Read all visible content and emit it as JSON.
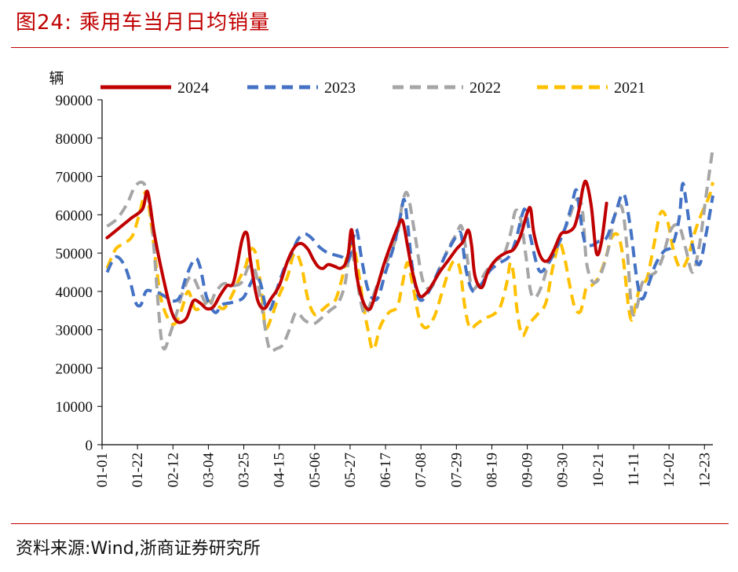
{
  "header": {
    "title": "图24:   乘用车当月日均销量"
  },
  "footer": {
    "source": "资料来源:Wind,浙商证券研究所"
  },
  "chart_data": {
    "type": "line",
    "ylabel": "辆",
    "ylim": [
      0,
      90000
    ],
    "yticks": [
      0,
      10000,
      20000,
      30000,
      40000,
      50000,
      60000,
      70000,
      80000,
      90000
    ],
    "xticks": [
      "01-01",
      "01-22",
      "02-12",
      "03-04",
      "03-25",
      "04-15",
      "05-06",
      "05-27",
      "06-17",
      "07-08",
      "07-29",
      "08-19",
      "09-09",
      "09-30",
      "10-21",
      "11-11",
      "12-02",
      "12-23"
    ],
    "xrange_days": [
      0,
      362
    ],
    "grid": false,
    "legend": "top",
    "series": [
      {
        "name": "2024",
        "color": "#c00000",
        "dash": "solid",
        "x": [
          3,
          10,
          17,
          24,
          27,
          31,
          36,
          41,
          45,
          50,
          54,
          58,
          62,
          66,
          70,
          74,
          78,
          83,
          86,
          88,
          92,
          96,
          100,
          105,
          110,
          114,
          118,
          122,
          125,
          128,
          131,
          134,
          138,
          141,
          144,
          146,
          148,
          151,
          155,
          159,
          163,
          167,
          171,
          175,
          178,
          181,
          184,
          188,
          192,
          196,
          200,
          205,
          210,
          214,
          217,
          219,
          221,
          225,
          229,
          234,
          239,
          244,
          248,
          252,
          254,
          256,
          260,
          264,
          268,
          272,
          276,
          280,
          283,
          285,
          287,
          290,
          293,
          296,
          299
        ],
        "y": [
          54000,
          56500,
          59000,
          61500,
          66000,
          55000,
          44000,
          35000,
          32000,
          33000,
          37500,
          37000,
          35500,
          36000,
          39000,
          41500,
          42500,
          53500,
          55000,
          48000,
          38000,
          35500,
          38000,
          41500,
          48000,
          51500,
          52500,
          51000,
          48500,
          46500,
          46000,
          47000,
          46500,
          46000,
          47000,
          50000,
          56000,
          44000,
          37000,
          35500,
          41000,
          47000,
          52000,
          56500,
          58500,
          52000,
          45000,
          39000,
          39500,
          42000,
          45000,
          48000,
          51000,
          53000,
          56000,
          52000,
          44000,
          41000,
          45500,
          48500,
          50000,
          51000,
          54500,
          60500,
          61500,
          55000,
          49000,
          48000,
          51000,
          55000,
          55500,
          57000,
          62000,
          67000,
          68500,
          62000,
          50000,
          53000,
          63000
        ]
      },
      {
        "name": "2023",
        "color": "#4472c4",
        "dash": "dashed",
        "x": [
          3,
          8,
          13,
          17,
          20,
          23,
          26,
          30,
          34,
          38,
          42,
          46,
          50,
          55,
          58,
          62,
          67,
          71,
          76,
          80,
          84,
          88,
          91,
          94,
          97,
          100,
          104,
          108,
          112,
          116,
          120,
          124,
          129,
          134,
          138,
          142,
          146,
          149,
          151,
          154,
          158,
          163,
          168,
          173,
          177,
          179,
          181,
          184,
          188,
          193,
          198,
          203,
          208,
          211,
          213,
          216,
          220,
          225,
          230,
          236,
          241,
          245,
          249,
          251,
          254,
          259,
          264,
          269,
          274,
          278,
          281,
          283,
          286,
          290,
          294,
          299,
          304,
          309,
          313,
          317,
          320,
          324,
          328,
          333,
          338,
          342,
          344,
          346,
          350,
          354,
          358,
          362
        ],
        "y": [
          45000,
          49000,
          47000,
          42000,
          37000,
          36500,
          40000,
          40000,
          39500,
          38500,
          37500,
          38500,
          44000,
          48500,
          46500,
          38500,
          34500,
          36500,
          37000,
          37500,
          38500,
          42000,
          44000,
          42000,
          36000,
          35500,
          41000,
          46000,
          49500,
          53500,
          55000,
          54000,
          51500,
          50000,
          49500,
          49000,
          48000,
          54000,
          56000,
          48000,
          40000,
          38000,
          45000,
          52000,
          60000,
          64000,
          58000,
          46000,
          38000,
          39500,
          44000,
          49000,
          53000,
          55000,
          54500,
          45000,
          40000,
          42000,
          45500,
          47500,
          49000,
          53000,
          60000,
          61000,
          54000,
          45500,
          47000,
          51000,
          56000,
          62000,
          66500,
          61000,
          53000,
          52000,
          53000,
          54000,
          60000,
          65500,
          57000,
          43000,
          38000,
          42000,
          47000,
          50500,
          52000,
          59000,
          68000,
          64000,
          52000,
          47000,
          55000,
          65000
        ]
      },
      {
        "name": "2022",
        "color": "#a6a6a6",
        "dash": "dashed",
        "x": [
          3,
          9,
          15,
          19,
          23,
          26,
          29,
          31,
          33,
          35,
          37,
          40,
          44,
          48,
          53,
          58,
          63,
          67,
          72,
          78,
          83,
          87,
          91,
          95,
          98,
          100,
          103,
          107,
          111,
          115,
          120,
          125,
          130,
          135,
          140,
          144,
          147,
          150,
          153,
          156,
          160,
          165,
          170,
          175,
          178,
          181,
          185,
          190,
          195,
          200,
          205,
          210,
          213,
          216,
          219,
          223,
          228,
          233,
          238,
          242,
          245,
          248,
          251,
          254,
          257,
          261,
          265,
          270,
          275,
          280,
          283,
          285,
          287,
          290,
          293,
          296,
          300,
          304,
          308,
          311,
          314,
          317,
          320,
          324,
          328,
          332,
          337,
          342,
          346,
          350,
          354,
          358,
          362
        ],
        "y": [
          57000,
          59000,
          63000,
          67000,
          68500,
          67000,
          60000,
          50000,
          38000,
          28000,
          25000,
          28500,
          34000,
          40000,
          44000,
          40000,
          36000,
          39500,
          42000,
          41500,
          42500,
          46500,
          45000,
          35000,
          27000,
          24500,
          25000,
          26000,
          30000,
          34500,
          32500,
          31500,
          33000,
          35000,
          37000,
          42000,
          50500,
          46500,
          38000,
          34000,
          38000,
          44000,
          49000,
          55000,
          63000,
          65500,
          56000,
          43000,
          41000,
          46000,
          51000,
          55000,
          57000,
          50000,
          41000,
          42000,
          45500,
          48000,
          49500,
          55000,
          61000,
          59000,
          50000,
          40000,
          38500,
          42000,
          48000,
          53000,
          57000,
          63000,
          64000,
          60000,
          48000,
          43000,
          42500,
          45000,
          51000,
          60000,
          62000,
          52000,
          35000,
          36000,
          42000,
          44000,
          45000,
          48500,
          56000,
          57000,
          51000,
          45000,
          52000,
          65000,
          77500
        ]
      },
      {
        "name": "2021",
        "color": "#ffc000",
        "dash": "dashed",
        "x": [
          3,
          8,
          13,
          18,
          22,
          26,
          29,
          32,
          35,
          39,
          43,
          47,
          51,
          55,
          59,
          63,
          67,
          72,
          77,
          81,
          85,
          88,
          91,
          93,
          95,
          97,
          101,
          105,
          110,
          114,
          118,
          122,
          126,
          130,
          134,
          138,
          142,
          146,
          149,
          152,
          155,
          158,
          160,
          162,
          165,
          170,
          175,
          178,
          181,
          184,
          188,
          192,
          197,
          202,
          206,
          209,
          212,
          215,
          218,
          222,
          227,
          232,
          236,
          240,
          242,
          244,
          246,
          249,
          253,
          258,
          263,
          267,
          271,
          274,
          277,
          280,
          283,
          285,
          287,
          290,
          294,
          298,
          302,
          306,
          309,
          312,
          314,
          316,
          319,
          323,
          327,
          331,
          335,
          339,
          343,
          347,
          351,
          355,
          360,
          362
        ],
        "y": [
          46000,
          51000,
          52500,
          54500,
          60000,
          66000,
          58000,
          47000,
          38000,
          33000,
          31500,
          35000,
          40000,
          35500,
          36000,
          37500,
          37000,
          35500,
          39000,
          43000,
          46500,
          51000,
          50000,
          45000,
          38000,
          30500,
          34000,
          39000,
          44000,
          50000,
          47000,
          38000,
          34000,
          35000,
          36500,
          37500,
          43000,
          50500,
          52000,
          45000,
          36000,
          29000,
          25000,
          26000,
          31000,
          34500,
          36000,
          42000,
          47500,
          42000,
          33000,
          30500,
          33500,
          40500,
          46000,
          48000,
          46000,
          36000,
          30500,
          31500,
          33000,
          34000,
          36000,
          42500,
          47500,
          44000,
          35000,
          28500,
          31500,
          34000,
          37000,
          46000,
          52500,
          49000,
          42000,
          36000,
          34500,
          37000,
          41000,
          41500,
          43500,
          48000,
          54000,
          54500,
          48000,
          36000,
          32500,
          36000,
          41500,
          43500,
          52000,
          60500,
          58500,
          50000,
          46000,
          48500,
          55000,
          60000,
          65000,
          68500
        ]
      }
    ]
  }
}
